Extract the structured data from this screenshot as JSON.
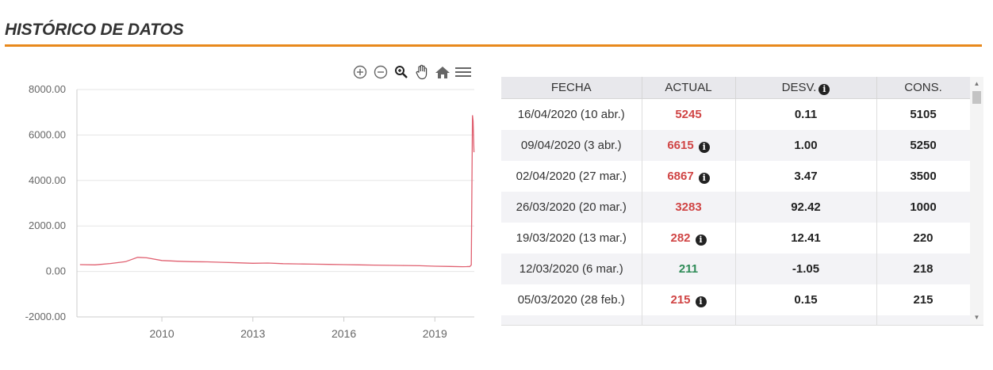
{
  "page": {
    "title": "HISTÓRICO DE DATOS"
  },
  "colors": {
    "accent": "#e8891c",
    "series": "#e06070",
    "negative": "#d04545",
    "positive": "#2e8b57"
  },
  "toolbar": {
    "icons": [
      "zoom-in-icon",
      "zoom-out-icon",
      "magnifier-icon",
      "pan-hand-icon",
      "home-icon",
      "menu-icon"
    ]
  },
  "chart_data": {
    "type": "line",
    "title": "",
    "xlabel": "",
    "ylabel": "",
    "xlim": [
      2007.2,
      2020.3
    ],
    "ylim": [
      -2000,
      8000
    ],
    "yticks": [
      "8000.00",
      "6000.00",
      "4000.00",
      "2000.00",
      "0.00",
      "-2000.00"
    ],
    "xticks": [
      "2010",
      "2013",
      "2016",
      "2019"
    ],
    "grid": true,
    "series": [
      {
        "values_x": [
          2007.3,
          2007.8,
          2008.3,
          2008.8,
          2009.2,
          2009.5,
          2010.0,
          2010.5,
          2011.0,
          2011.5,
          2012.0,
          2012.5,
          2013.0,
          2013.5,
          2014.0,
          2014.5,
          2015.0,
          2015.5,
          2016.0,
          2016.5,
          2017.0,
          2017.5,
          2018.0,
          2018.5,
          2019.0,
          2019.5,
          2019.9,
          2020.05,
          2020.1,
          2020.15,
          2020.2,
          2020.22,
          2020.24,
          2020.26,
          2020.29
        ],
        "values_y": [
          300,
          290,
          350,
          430,
          620,
          600,
          480,
          450,
          430,
          420,
          400,
          380,
          360,
          370,
          340,
          330,
          320,
          310,
          300,
          290,
          280,
          270,
          260,
          250,
          230,
          220,
          210,
          212,
          215,
          211,
          282,
          3283,
          6867,
          6615,
          5245
        ]
      }
    ]
  },
  "table": {
    "headers": {
      "fecha": "FECHA",
      "actual": "ACTUAL",
      "desv": "DESV.",
      "cons": "CONS."
    },
    "rows": [
      {
        "fecha": "16/04/2020 (10 abr.)",
        "actual": "5245",
        "desv": "0.11",
        "cons": "5105"
      },
      {
        "fecha": "09/04/2020 (3 abr.)",
        "actual": "6615",
        "desv": "1.00",
        "cons": "5250"
      },
      {
        "fecha": "02/04/2020 (27 mar.)",
        "actual": "6867",
        "desv": "3.47",
        "cons": "3500"
      },
      {
        "fecha": "26/03/2020 (20 mar.)",
        "actual": "3283",
        "desv": "92.42",
        "cons": "1000"
      },
      {
        "fecha": "19/03/2020 (13 mar.)",
        "actual": "282",
        "desv": "12.41",
        "cons": "220"
      },
      {
        "fecha": "12/03/2020 (6 mar.)",
        "actual": "211",
        "desv": "-1.05",
        "cons": "218"
      },
      {
        "fecha": "05/03/2020 (28 feb.)",
        "actual": "215",
        "desv": "0.15",
        "cons": "215"
      }
    ]
  }
}
